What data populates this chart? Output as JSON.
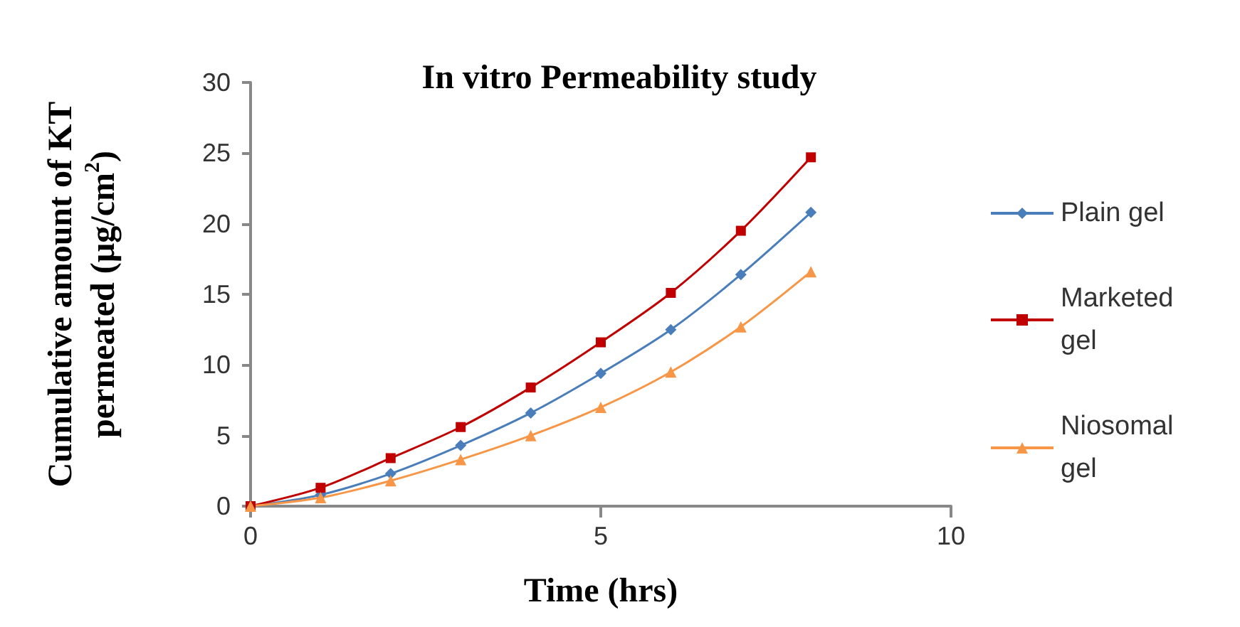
{
  "chart_data": {
    "type": "line",
    "title": "In vitro Permeability study",
    "xlabel": "Time (hrs)",
    "ylabel": "Cumulative amount of KT permeated (µg/cm$^{2}$)",
    "x": [
      0,
      1,
      2,
      3,
      4,
      5,
      6,
      7,
      8
    ],
    "series": [
      {
        "name": "Plain gel",
        "color": "#4a7ebb",
        "marker": "diamond",
        "values": [
          0,
          0.8,
          2.3,
          4.3,
          6.6,
          9.4,
          12.5,
          16.4,
          20.8
        ]
      },
      {
        "name": "Marketed gel",
        "color": "#c00000",
        "marker": "square",
        "values": [
          0,
          1.3,
          3.4,
          5.6,
          8.4,
          11.6,
          15.1,
          19.5,
          24.7
        ]
      },
      {
        "name": "Niosomal gel",
        "color": "#f79646",
        "marker": "triangle",
        "values": [
          0,
          0.6,
          1.8,
          3.3,
          5,
          7,
          9.5,
          12.7,
          16.6
        ]
      }
    ],
    "xlim": [
      0,
      10
    ],
    "xticks": [
      0,
      5,
      10
    ],
    "ylim": [
      0,
      30
    ],
    "yticks": [
      0,
      5,
      10,
      15,
      20,
      25,
      30
    ],
    "grid": false,
    "legend": "right",
    "line_style": "solid"
  }
}
